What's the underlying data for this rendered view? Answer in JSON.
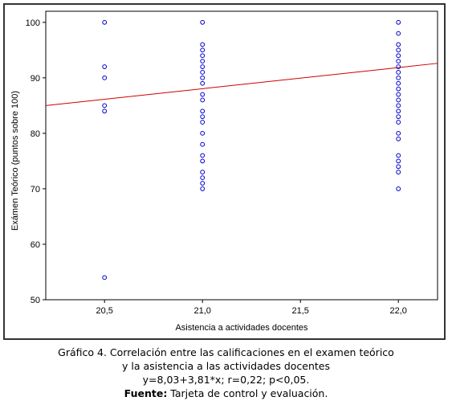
{
  "chart_data": {
    "type": "scatter",
    "xlabel": "Asistencia a actividades docentes",
    "ylabel": "Exámen Teórico (puntos sobre 100)",
    "xlim": [
      20.2,
      22.2
    ],
    "ylim": [
      50,
      102
    ],
    "x_ticks": [
      20.5,
      21.0,
      21.5,
      22.0
    ],
    "x_tick_labels": [
      "20,5",
      "21,0",
      "21,5",
      "22,0"
    ],
    "y_ticks": [
      50,
      60,
      70,
      80,
      90,
      100
    ],
    "y_tick_labels": [
      "50",
      "60",
      "70",
      "80",
      "90",
      "100"
    ],
    "grid": false,
    "point_color": "#0000cc",
    "line_color": "#cc0000",
    "points": [
      {
        "x": 20.5,
        "ys": [
          100,
          92,
          90,
          85,
          84,
          54
        ]
      },
      {
        "x": 21.0,
        "ys": [
          100,
          96,
          95,
          94,
          93,
          92,
          91,
          90,
          89,
          87,
          86,
          84,
          83,
          82,
          80,
          78,
          76,
          75,
          73,
          72,
          71,
          70
        ]
      },
      {
        "x": 22.0,
        "ys": [
          100,
          98,
          96,
          95,
          94,
          93,
          92,
          91,
          90,
          89,
          88,
          87,
          86,
          85,
          84,
          83,
          82,
          80,
          79,
          76,
          75,
          74,
          73,
          70
        ]
      }
    ],
    "regression": {
      "intercept": 8.03,
      "slope": 3.81
    }
  },
  "caption": {
    "line1": "Gráfico 4. Correlación entre las calificaciones  en el examen teórico",
    "line2": "y la asistencia a las actividades docentes",
    "line3": "y=8,03+3,81*x; r=0,22; p<0,05.",
    "source_label": "Fuente:",
    "source_text": " Tarjeta de control y evaluación."
  }
}
